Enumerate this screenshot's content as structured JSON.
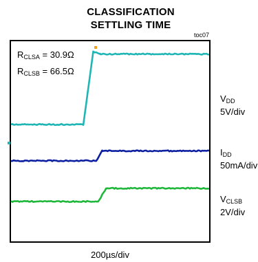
{
  "title_line1": "CLASSIFICATION",
  "title_line2": "SETTLING TIME",
  "figure_tag": "toc07",
  "annotations": {
    "rclsa": {
      "prefix": "R",
      "sub": "CLSA",
      "text": " = 30.9Ω"
    },
    "rclsb": {
      "prefix": "R",
      "sub": "CLSB",
      "text": " = 66.5Ω"
    }
  },
  "x_scale": "200µs/div",
  "chart_data": {
    "type": "line",
    "time_per_div_us": 200,
    "x_divisions": 10,
    "y_divisions": 8,
    "series": [
      {
        "name_prefix": "V",
        "name_sub": "DD",
        "scale": "5V/div",
        "color": "#1fb5b5",
        "x_us": [
          0,
          730,
          830,
          900,
          2000
        ],
        "level_div": [
          3.5,
          3.5,
          6.8,
          6.7,
          6.7
        ]
      },
      {
        "name_prefix": "I",
        "name_sub": "DD",
        "scale": "50mA/div",
        "color": "#0b1fa0",
        "x_us": [
          0,
          860,
          920,
          2000
        ],
        "level_div": [
          1.85,
          1.85,
          2.3,
          2.3
        ]
      },
      {
        "name_prefix": "V",
        "name_sub": "CLSB",
        "scale": "2V/div",
        "color": "#1fb83a",
        "x_us": [
          0,
          880,
          960,
          2000
        ],
        "level_div": [
          0.0,
          0.0,
          0.6,
          0.6
        ]
      }
    ],
    "trigger_color": "#f0a020",
    "ground_marker_color": "#1fb5b5"
  }
}
